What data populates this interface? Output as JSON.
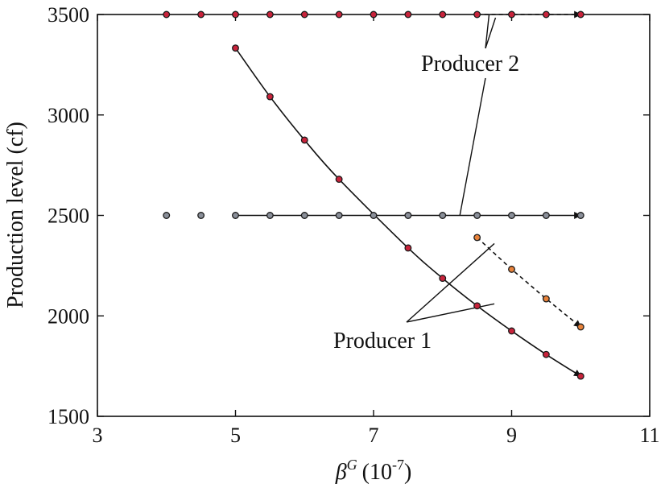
{
  "chart_data": {
    "type": "scatter",
    "title": "",
    "xlabel": {
      "symbol": "β",
      "superscript": "G",
      "unit": "(10",
      "unit_exp": "-7",
      "unit_close": ")"
    },
    "ylabel": "Production level (cf)",
    "xlim": [
      3,
      11
    ],
    "ylim": [
      1500,
      3500
    ],
    "xticks": [
      3,
      5,
      7,
      9,
      11
    ],
    "yticks": [
      1500,
      2000,
      2500,
      3000,
      3500
    ],
    "grid": false,
    "series": [
      {
        "role": "producer2-upper",
        "marker_color": "#c8233b",
        "line": "dashed-arrow",
        "line_from_x": 8.5,
        "x": [
          4,
          4.5,
          5,
          5.5,
          6,
          6.5,
          7,
          7.5,
          8,
          8.5,
          9,
          9.5,
          10
        ],
        "y": [
          3500,
          3500,
          3500,
          3500,
          3500,
          3500,
          3500,
          3500,
          3500,
          3500,
          3500,
          3500,
          3500
        ]
      },
      {
        "role": "producer2-lower",
        "marker_color": "#8a8f99",
        "line": "solid-arrow",
        "line_from_x": 5,
        "x": [
          4,
          4.5,
          5,
          5.5,
          6,
          6.5,
          7,
          7.5,
          8,
          8.5,
          9,
          9.5,
          10
        ],
        "y": [
          2500,
          2500,
          2500,
          2500,
          2500,
          2500,
          2500,
          2500,
          2500,
          2500,
          2500,
          2500,
          2500
        ]
      },
      {
        "role": "producer1-curve",
        "marker_color": "#c8233b",
        "line": "solid-arrow",
        "line_from_x": 5,
        "x": [
          5,
          5.5,
          6,
          6.5,
          7.5,
          8,
          8.5,
          9,
          9.5,
          10
        ],
        "y": [
          3333,
          3091,
          2875,
          2680,
          2338,
          2187,
          2050,
          1925,
          1808,
          1700
        ]
      },
      {
        "role": "producer1-alt",
        "marker_color": "#e8823a",
        "line": "dashed-arrow",
        "line_from_x": 8.5,
        "x": [
          8.5,
          9,
          9.5,
          10
        ],
        "y": [
          2390,
          2232,
          2085,
          1945
        ]
      }
    ],
    "annotations": [
      {
        "text": "Producer 2",
        "target": "producer2-upper,producer2-lower"
      },
      {
        "text": "Producer 1",
        "target": "producer1-curve,producer1-alt"
      }
    ]
  }
}
